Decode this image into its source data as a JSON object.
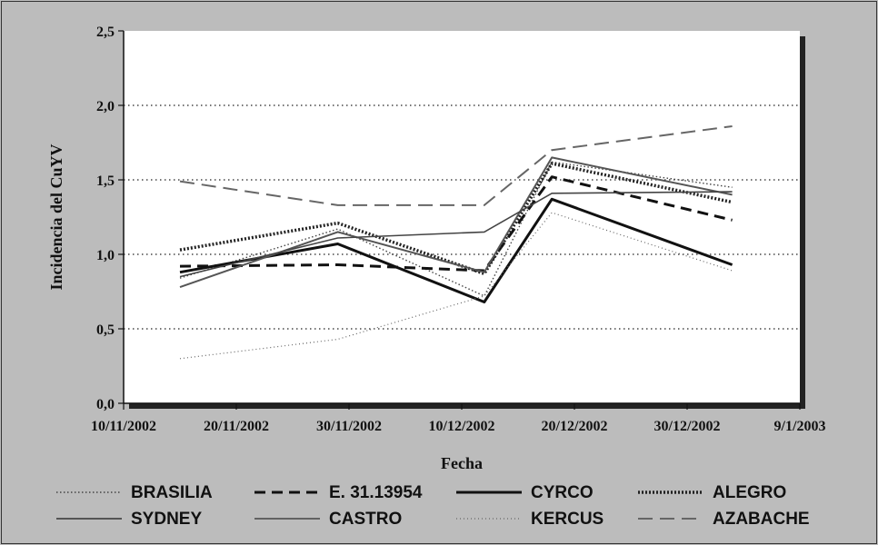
{
  "chart_data": {
    "type": "line",
    "title": "",
    "xlabel": "Fecha",
    "ylabel": "Incidencia del CuYV",
    "ylim": [
      0,
      2.5
    ],
    "yticks": [
      0,
      0.5,
      1.0,
      1.5,
      2.0,
      2.5
    ],
    "ytick_labels": [
      "0,0",
      "0,5",
      "1,0",
      "1,5",
      "2,0",
      "2,5"
    ],
    "xlim": [
      "2002-11-10",
      "2003-01-09"
    ],
    "xtick_labels": [
      "10/11/2002",
      "20/11/2002",
      "30/11/2002",
      "10/12/2002",
      "20/12/2002",
      "30/12/2002",
      "9/1/2003"
    ],
    "xtick_dates": [
      "2002-11-10",
      "2002-11-20",
      "2002-11-30",
      "2002-12-10",
      "2002-12-20",
      "2002-12-30",
      "2003-01-09"
    ],
    "grid": "horizontal-dotted",
    "legend_position": "bottom",
    "x": [
      "2002-11-15",
      "2002-11-29",
      "2002-12-12",
      "2002-12-18",
      "2003-01-03"
    ],
    "series": [
      {
        "name": "BRASILIA",
        "style": "dotted-fine",
        "color": "#444444",
        "values": [
          0.84,
          1.17,
          0.72,
          1.62,
          1.45
        ]
      },
      {
        "name": "E. 31.13954",
        "style": "dashed-heavy",
        "color": "#111111",
        "values": [
          0.92,
          0.93,
          0.89,
          1.52,
          1.23
        ]
      },
      {
        "name": "CYRCO",
        "style": "solid-heavy",
        "color": "#111111",
        "values": [
          0.88,
          1.07,
          0.68,
          1.37,
          0.93
        ]
      },
      {
        "name": "ALEGRO",
        "style": "dotted-heavy",
        "color": "#222222",
        "values": [
          1.03,
          1.21,
          0.87,
          1.61,
          1.35
        ]
      },
      {
        "name": "SYDNEY",
        "style": "solid-medium",
        "color": "#555555",
        "values": [
          0.78,
          1.15,
          0.88,
          1.65,
          1.4
        ]
      },
      {
        "name": "CASTRO",
        "style": "solid-thin",
        "color": "#444444",
        "values": [
          0.85,
          1.11,
          1.15,
          1.41,
          1.42
        ]
      },
      {
        "name": "KERCUS",
        "style": "dotted-thin",
        "color": "#666666",
        "values": [
          0.3,
          0.43,
          0.72,
          1.28,
          0.89
        ]
      },
      {
        "name": "AZABACHE",
        "style": "dashed-long",
        "color": "#666666",
        "values": [
          1.49,
          1.33,
          1.33,
          1.7,
          1.86
        ]
      }
    ]
  }
}
